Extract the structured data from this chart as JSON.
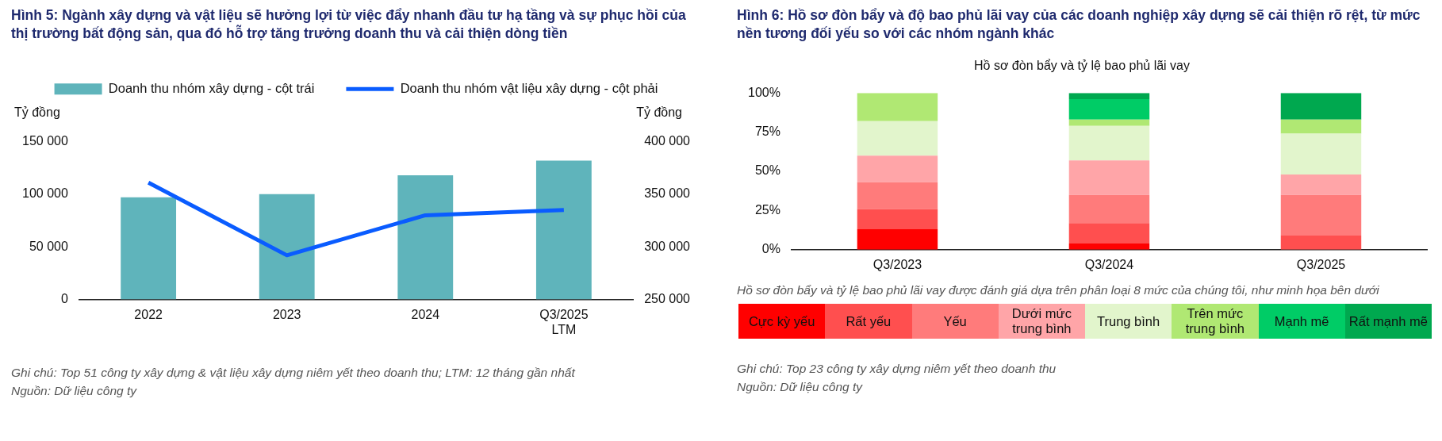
{
  "chart_data": [
    {
      "type": "bar",
      "title": "Hình 5: Ngành xây dựng và vật liệu sẽ hưởng lợi từ việc đẩy nhanh đầu tư hạ tầng và sự phục hồi của thị trường bất động sản, qua đó hỗ trợ tăng trưởng doanh thu và cải thiện dòng tiền",
      "ylabel": "Tỷ đồng",
      "y2label": "Tỷ đồng",
      "categories": [
        "2022",
        "2023",
        "2024",
        "Q3/2025\nLTM"
      ],
      "series": [
        {
          "name": "Doanh thu nhóm xây dựng - cột trái",
          "color": "#5fb4bb",
          "values": [
            97000,
            100000,
            118000,
            132000
          ]
        },
        {
          "name": "Doanh thu nhóm vật liệu xây dựng - cột phải",
          "type": "line",
          "axis": "y2",
          "color": "#0a5cff",
          "values": [
            361000,
            292000,
            330000,
            335000
          ]
        }
      ],
      "ylim": [
        0,
        150000
      ],
      "yticks": [
        {
          "value": 0,
          "label": "0"
        },
        {
          "value": 50000,
          "label": "50 000"
        },
        {
          "value": 100000,
          "label": "100 000"
        },
        {
          "value": 150000,
          "label": "150 000"
        }
      ],
      "y2lim": [
        250000,
        400000
      ],
      "y2ticks": [
        {
          "value": 250000,
          "label": "250 000"
        },
        {
          "value": 300000,
          "label": "300 000"
        },
        {
          "value": 350000,
          "label": "350 000"
        },
        {
          "value": 400000,
          "label": "400 000"
        }
      ],
      "grid": false,
      "legend": "top",
      "marker": "none",
      "line_style": "solid",
      "annotations": [
        "Ghi chú: Top 51 công ty xây dựng & vật liệu xây dựng niêm yết theo doanh thu; LTM: 12 tháng gần nhất",
        "Nguồn: Dữ liệu công ty"
      ]
    },
    {
      "type": "bar",
      "stacked": true,
      "title": "Hình 6: Hồ sơ đòn bẩy và độ bao phủ lãi vay của các doanh nghiệp xây dựng sẽ cải thiện rõ rệt, từ mức nền tương đối yếu so với các nhóm ngành khác",
      "subtitle": "Hồ sơ đòn bẩy và tỷ lệ bao phủ lãi vay",
      "categories": [
        "Q3/2023",
        "Q3/2024",
        "Q3/2025"
      ],
      "series": [
        {
          "name": "Cực kỳ yếu",
          "color": "#ff0000",
          "values": [
            13,
            4,
            0
          ]
        },
        {
          "name": "Rất yếu",
          "color": "#ff4f4f",
          "values": [
            13,
            13,
            9
          ]
        },
        {
          "name": "Yếu",
          "color": "#ff7b7b",
          "values": [
            17,
            18,
            26
          ]
        },
        {
          "name": "Dưới mức trung bình",
          "color": "#ffa5a8",
          "values": [
            17,
            22,
            13
          ]
        },
        {
          "name": "Trung bình",
          "color": "#e2f5cc",
          "values": [
            22,
            22,
            26
          ]
        },
        {
          "name": "Trên mức trung bình",
          "color": "#b0e873",
          "values": [
            18,
            4,
            9
          ]
        },
        {
          "name": "Mạnh mẽ",
          "color": "#00cc66",
          "values": [
            0,
            13,
            0
          ]
        },
        {
          "name": "Rất mạnh mẽ",
          "color": "#00a84f",
          "values": [
            0,
            4,
            17
          ]
        }
      ],
      "ylim": [
        0,
        100
      ],
      "yticks": [
        {
          "value": 0,
          "label": "0%"
        },
        {
          "value": 25,
          "label": "25%"
        },
        {
          "value": 50,
          "label": "50%"
        },
        {
          "value": 75,
          "label": "75%"
        },
        {
          "value": 100,
          "label": "100%"
        }
      ],
      "grid": false,
      "legend": "bottom",
      "annotations": [
        "Hồ sơ đòn bẩy và tỷ lệ bao phủ lãi vay được đánh giá dựa trên phân loại 8 mức của chúng tôi, như minh họa bên dưới",
        "Ghi chú: Top 23 công ty xây dựng niêm yết theo doanh thu",
        "Nguồn: Dữ liệu công ty"
      ]
    }
  ]
}
